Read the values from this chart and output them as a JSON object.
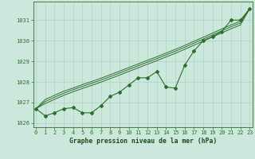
{
  "x": [
    0,
    1,
    2,
    3,
    4,
    5,
    6,
    7,
    8,
    9,
    10,
    11,
    12,
    13,
    14,
    15,
    16,
    17,
    18,
    19,
    20,
    21,
    22,
    23
  ],
  "y_main": [
    1026.7,
    1026.35,
    1026.5,
    1026.7,
    1026.75,
    1026.5,
    1026.5,
    1026.85,
    1027.3,
    1027.5,
    1027.85,
    1028.2,
    1028.2,
    1028.5,
    1027.75,
    1027.7,
    1028.8,
    1029.5,
    1030.0,
    1030.2,
    1030.45,
    1031.0,
    1031.0,
    1031.55
  ],
  "y_line1": [
    1026.7,
    1027.15,
    1027.35,
    1027.55,
    1027.7,
    1027.87,
    1028.02,
    1028.18,
    1028.35,
    1028.52,
    1028.7,
    1028.87,
    1029.05,
    1029.22,
    1029.4,
    1029.58,
    1029.77,
    1029.97,
    1030.17,
    1030.37,
    1030.57,
    1030.77,
    1030.95,
    1031.55
  ],
  "y_line2": [
    1026.7,
    1027.05,
    1027.25,
    1027.45,
    1027.62,
    1027.78,
    1027.93,
    1028.09,
    1028.26,
    1028.43,
    1028.61,
    1028.78,
    1028.96,
    1029.13,
    1029.31,
    1029.49,
    1029.68,
    1029.88,
    1030.08,
    1030.28,
    1030.48,
    1030.68,
    1030.86,
    1031.55
  ],
  "y_line3": [
    1026.7,
    1026.95,
    1027.15,
    1027.35,
    1027.52,
    1027.68,
    1027.83,
    1027.99,
    1028.16,
    1028.33,
    1028.51,
    1028.68,
    1028.86,
    1029.03,
    1029.21,
    1029.39,
    1029.58,
    1029.78,
    1029.98,
    1030.18,
    1030.38,
    1030.58,
    1030.76,
    1031.55
  ],
  "line_color": "#2d6e2d",
  "marker_color": "#2d6e2d",
  "bg_color": "#cce8dc",
  "grid_color": "#aad4c4",
  "axis_label_color": "#1a4a1a",
  "tick_color": "#2d6e2d",
  "xlabel": "Graphe pression niveau de la mer (hPa)",
  "ylim": [
    1025.8,
    1031.9
  ],
  "yticks": [
    1026,
    1027,
    1028,
    1029,
    1030,
    1031
  ],
  "xticks": [
    0,
    1,
    2,
    3,
    4,
    5,
    6,
    7,
    8,
    9,
    10,
    11,
    12,
    13,
    14,
    15,
    16,
    17,
    18,
    19,
    20,
    21,
    22,
    23
  ],
  "xlim": [
    -0.3,
    23.3
  ]
}
